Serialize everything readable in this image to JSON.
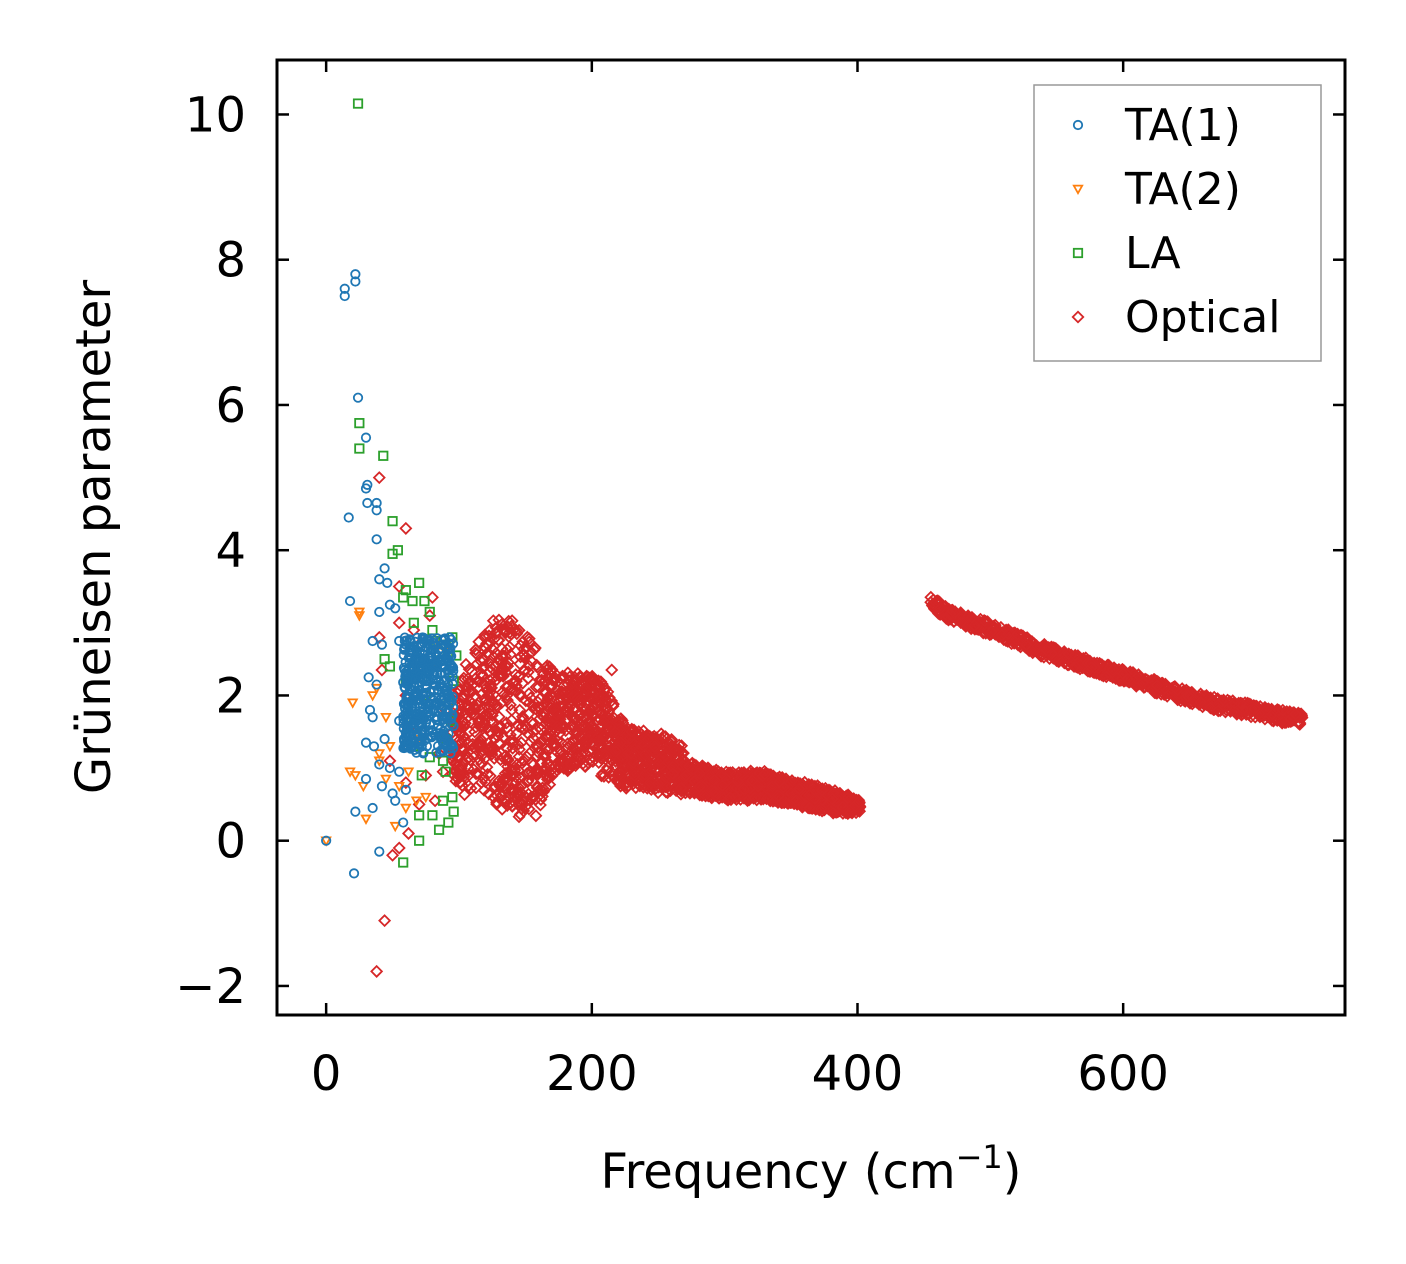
{
  "chart_data": {
    "type": "scatter",
    "title": "",
    "xlabel": "Frequency (cm",
    "xlabel_sup": "−1",
    "xlabel_end": ")",
    "ylabel": "Grüneisen parameter",
    "xlim": [
      -37,
      767
    ],
    "ylim": [
      -2.4,
      10.75
    ],
    "xticks": [
      0,
      200,
      400,
      600
    ],
    "yticks": [
      -2,
      0,
      2,
      4,
      6,
      8,
      10
    ],
    "xtick_labels": [
      "0",
      "200",
      "400",
      "600"
    ],
    "ytick_labels": [
      "−2",
      "0",
      "2",
      "4",
      "6",
      "8",
      "10"
    ],
    "grid": false,
    "legend_position": "top-right",
    "series": [
      {
        "name": "TA(1)",
        "marker": "circle",
        "color": "#1f77b4",
        "points": [
          [
            0,
            0
          ],
          [
            14,
            7.6
          ],
          [
            14,
            7.5
          ],
          [
            22,
            7.7
          ],
          [
            22,
            7.8
          ],
          [
            24,
            6.1
          ],
          [
            30,
            5.55
          ],
          [
            30,
            4.85
          ],
          [
            31,
            4.9
          ],
          [
            31,
            4.65
          ],
          [
            17,
            4.45
          ],
          [
            38,
            4.55
          ],
          [
            38,
            4.65
          ],
          [
            38,
            4.15
          ],
          [
            44,
            3.75
          ],
          [
            46,
            3.55
          ],
          [
            40,
            3.6
          ],
          [
            18,
            3.3
          ],
          [
            40,
            3.15
          ],
          [
            48,
            3.25
          ],
          [
            52,
            3.2
          ],
          [
            35,
            2.75
          ],
          [
            42,
            2.7
          ],
          [
            55,
            2.75
          ],
          [
            60,
            2.7
          ],
          [
            32,
            2.25
          ],
          [
            38,
            2.15
          ],
          [
            60,
            2.3
          ],
          [
            65,
            2.45
          ],
          [
            33,
            1.8
          ],
          [
            35,
            1.7
          ],
          [
            55,
            1.65
          ],
          [
            68,
            1.75
          ],
          [
            30,
            1.35
          ],
          [
            36,
            1.3
          ],
          [
            44,
            1.4
          ],
          [
            62,
            1.35
          ],
          [
            72,
            1.3
          ],
          [
            40,
            1.05
          ],
          [
            48,
            1.0
          ],
          [
            55,
            0.95
          ],
          [
            30,
            0.85
          ],
          [
            42,
            0.75
          ],
          [
            50,
            0.65
          ],
          [
            60,
            0.7
          ],
          [
            22,
            0.4
          ],
          [
            35,
            0.45
          ],
          [
            52,
            0.55
          ],
          [
            58,
            0.25
          ],
          [
            40,
            -0.15
          ],
          [
            21,
            -0.45
          ]
        ],
        "cluster": {
          "x": [
            58,
            96
          ],
          "y": [
            1.2,
            2.8
          ],
          "count": 420
        }
      },
      {
        "name": "TA(2)",
        "marker": "triangle-down",
        "color": "#ff7f0e",
        "points": [
          [
            0,
            0
          ],
          [
            20,
            1.9
          ],
          [
            25,
            3.15
          ],
          [
            25,
            3.1
          ],
          [
            35,
            2.0
          ],
          [
            38,
            2.1
          ],
          [
            40,
            1.2
          ],
          [
            45,
            1.7
          ],
          [
            48,
            1.3
          ],
          [
            18,
            0.95
          ],
          [
            22,
            0.9
          ],
          [
            28,
            0.75
          ],
          [
            40,
            1.1
          ],
          [
            45,
            0.85
          ],
          [
            30,
            0.3
          ],
          [
            55,
            0.75
          ],
          [
            60,
            0.45
          ],
          [
            52,
            0.2
          ],
          [
            68,
            0.55
          ],
          [
            62,
            0.95
          ],
          [
            75,
            0.6
          ],
          [
            70,
            1.4
          ],
          [
            80,
            2.4
          ],
          [
            85,
            2.7
          ],
          [
            90,
            2.6
          ]
        ]
      },
      {
        "name": "LA",
        "marker": "square",
        "color": "#2ca02c",
        "points": [
          [
            24,
            10.15
          ],
          [
            25,
            5.75
          ],
          [
            25,
            5.4
          ],
          [
            43,
            5.3
          ],
          [
            50,
            4.4
          ],
          [
            50,
            3.95
          ],
          [
            54,
            4.0
          ],
          [
            60,
            3.45
          ],
          [
            58,
            3.35
          ],
          [
            65,
            3.3
          ],
          [
            70,
            3.55
          ],
          [
            74,
            3.3
          ],
          [
            78,
            3.15
          ],
          [
            66,
            3.0
          ],
          [
            80,
            2.9
          ],
          [
            82,
            2.75
          ],
          [
            44,
            2.5
          ],
          [
            48,
            2.4
          ],
          [
            60,
            2.2
          ],
          [
            75,
            2.0
          ],
          [
            85,
            2.6
          ],
          [
            90,
            2.7
          ],
          [
            95,
            2.8
          ],
          [
            98,
            2.55
          ],
          [
            96,
            2.2
          ],
          [
            92,
            1.9
          ],
          [
            94,
            1.65
          ],
          [
            90,
            1.4
          ],
          [
            88,
            1.1
          ],
          [
            90,
            0.95
          ],
          [
            95,
            0.6
          ],
          [
            92,
            0.25
          ],
          [
            85,
            0.15
          ],
          [
            80,
            0.35
          ],
          [
            70,
            0.35
          ],
          [
            70,
            0.0
          ],
          [
            58,
            -0.3
          ],
          [
            88,
            0.55
          ],
          [
            96,
            0.4
          ],
          [
            78,
            1.15
          ],
          [
            72,
            0.9
          ],
          [
            66,
            1.3
          ],
          [
            62,
            1.7
          ]
        ]
      },
      {
        "name": "Optical",
        "marker": "diamond",
        "color": "#d62728",
        "points": [
          [
            40,
            5.0
          ],
          [
            60,
            4.3
          ],
          [
            55,
            3.5
          ],
          [
            80,
            3.35
          ],
          [
            78,
            3.1
          ],
          [
            55,
            3.0
          ],
          [
            66,
            2.9
          ],
          [
            70,
            2.7
          ],
          [
            40,
            2.8
          ],
          [
            42,
            2.35
          ],
          [
            60,
            2.0
          ],
          [
            65,
            1.6
          ],
          [
            48,
            1.1
          ],
          [
            60,
            0.8
          ],
          [
            75,
            0.9
          ],
          [
            70,
            0.5
          ],
          [
            82,
            0.55
          ],
          [
            62,
            0.1
          ],
          [
            50,
            -0.2
          ],
          [
            55,
            -0.1
          ],
          [
            44,
            -1.1
          ],
          [
            38,
            -1.8
          ],
          [
            215,
            2.35
          ],
          [
            205,
            2.2
          ],
          [
            230,
            1.5
          ],
          [
            90,
            1.8
          ],
          [
            85,
            1.2
          ],
          [
            88,
            0.95
          ]
        ],
        "dense_band": {
          "upper": [
            [
              95,
              1.9
            ],
            [
              105,
              2.4
            ],
            [
              115,
              2.8
            ],
            [
              130,
              3.1
            ],
            [
              145,
              3.1
            ],
            [
              155,
              2.8
            ],
            [
              165,
              2.5
            ],
            [
              180,
              2.3
            ],
            [
              205,
              2.3
            ],
            [
              215,
              2.0
            ],
            [
              225,
              1.6
            ],
            [
              240,
              1.5
            ],
            [
              255,
              1.45
            ],
            [
              268,
              1.35
            ],
            [
              270,
              1.1
            ],
            [
              285,
              1.05
            ],
            [
              300,
              0.95
            ],
            [
              330,
              0.95
            ],
            [
              360,
              0.8
            ],
            [
              390,
              0.65
            ],
            [
              402,
              0.55
            ]
          ],
          "lower": [
            [
              95,
              0.85
            ],
            [
              105,
              0.6
            ],
            [
              115,
              0.7
            ],
            [
              130,
              0.45
            ],
            [
              145,
              0.35
            ],
            [
              155,
              0.3
            ],
            [
              165,
              0.6
            ],
            [
              175,
              0.85
            ],
            [
              185,
              0.95
            ],
            [
              205,
              1.0
            ],
            [
              210,
              0.8
            ],
            [
              225,
              0.7
            ],
            [
              240,
              0.7
            ],
            [
              255,
              0.65
            ],
            [
              270,
              0.65
            ],
            [
              285,
              0.6
            ],
            [
              300,
              0.55
            ],
            [
              330,
              0.55
            ],
            [
              360,
              0.45
            ],
            [
              390,
              0.35
            ],
            [
              402,
              0.4
            ]
          ]
        },
        "dense_curve": {
          "points": [
            [
              455,
              3.28
            ],
            [
              470,
              3.1
            ],
            [
              490,
              2.98
            ],
            [
              510,
              2.85
            ],
            [
              535,
              2.65
            ],
            [
              560,
              2.5
            ],
            [
              580,
              2.38
            ],
            [
              600,
              2.28
            ],
            [
              620,
              2.15
            ],
            [
              645,
              2.0
            ],
            [
              670,
              1.88
            ],
            [
              695,
              1.8
            ],
            [
              715,
              1.72
            ],
            [
              735,
              1.67
            ]
          ],
          "half_width": 0.09
        }
      }
    ]
  }
}
